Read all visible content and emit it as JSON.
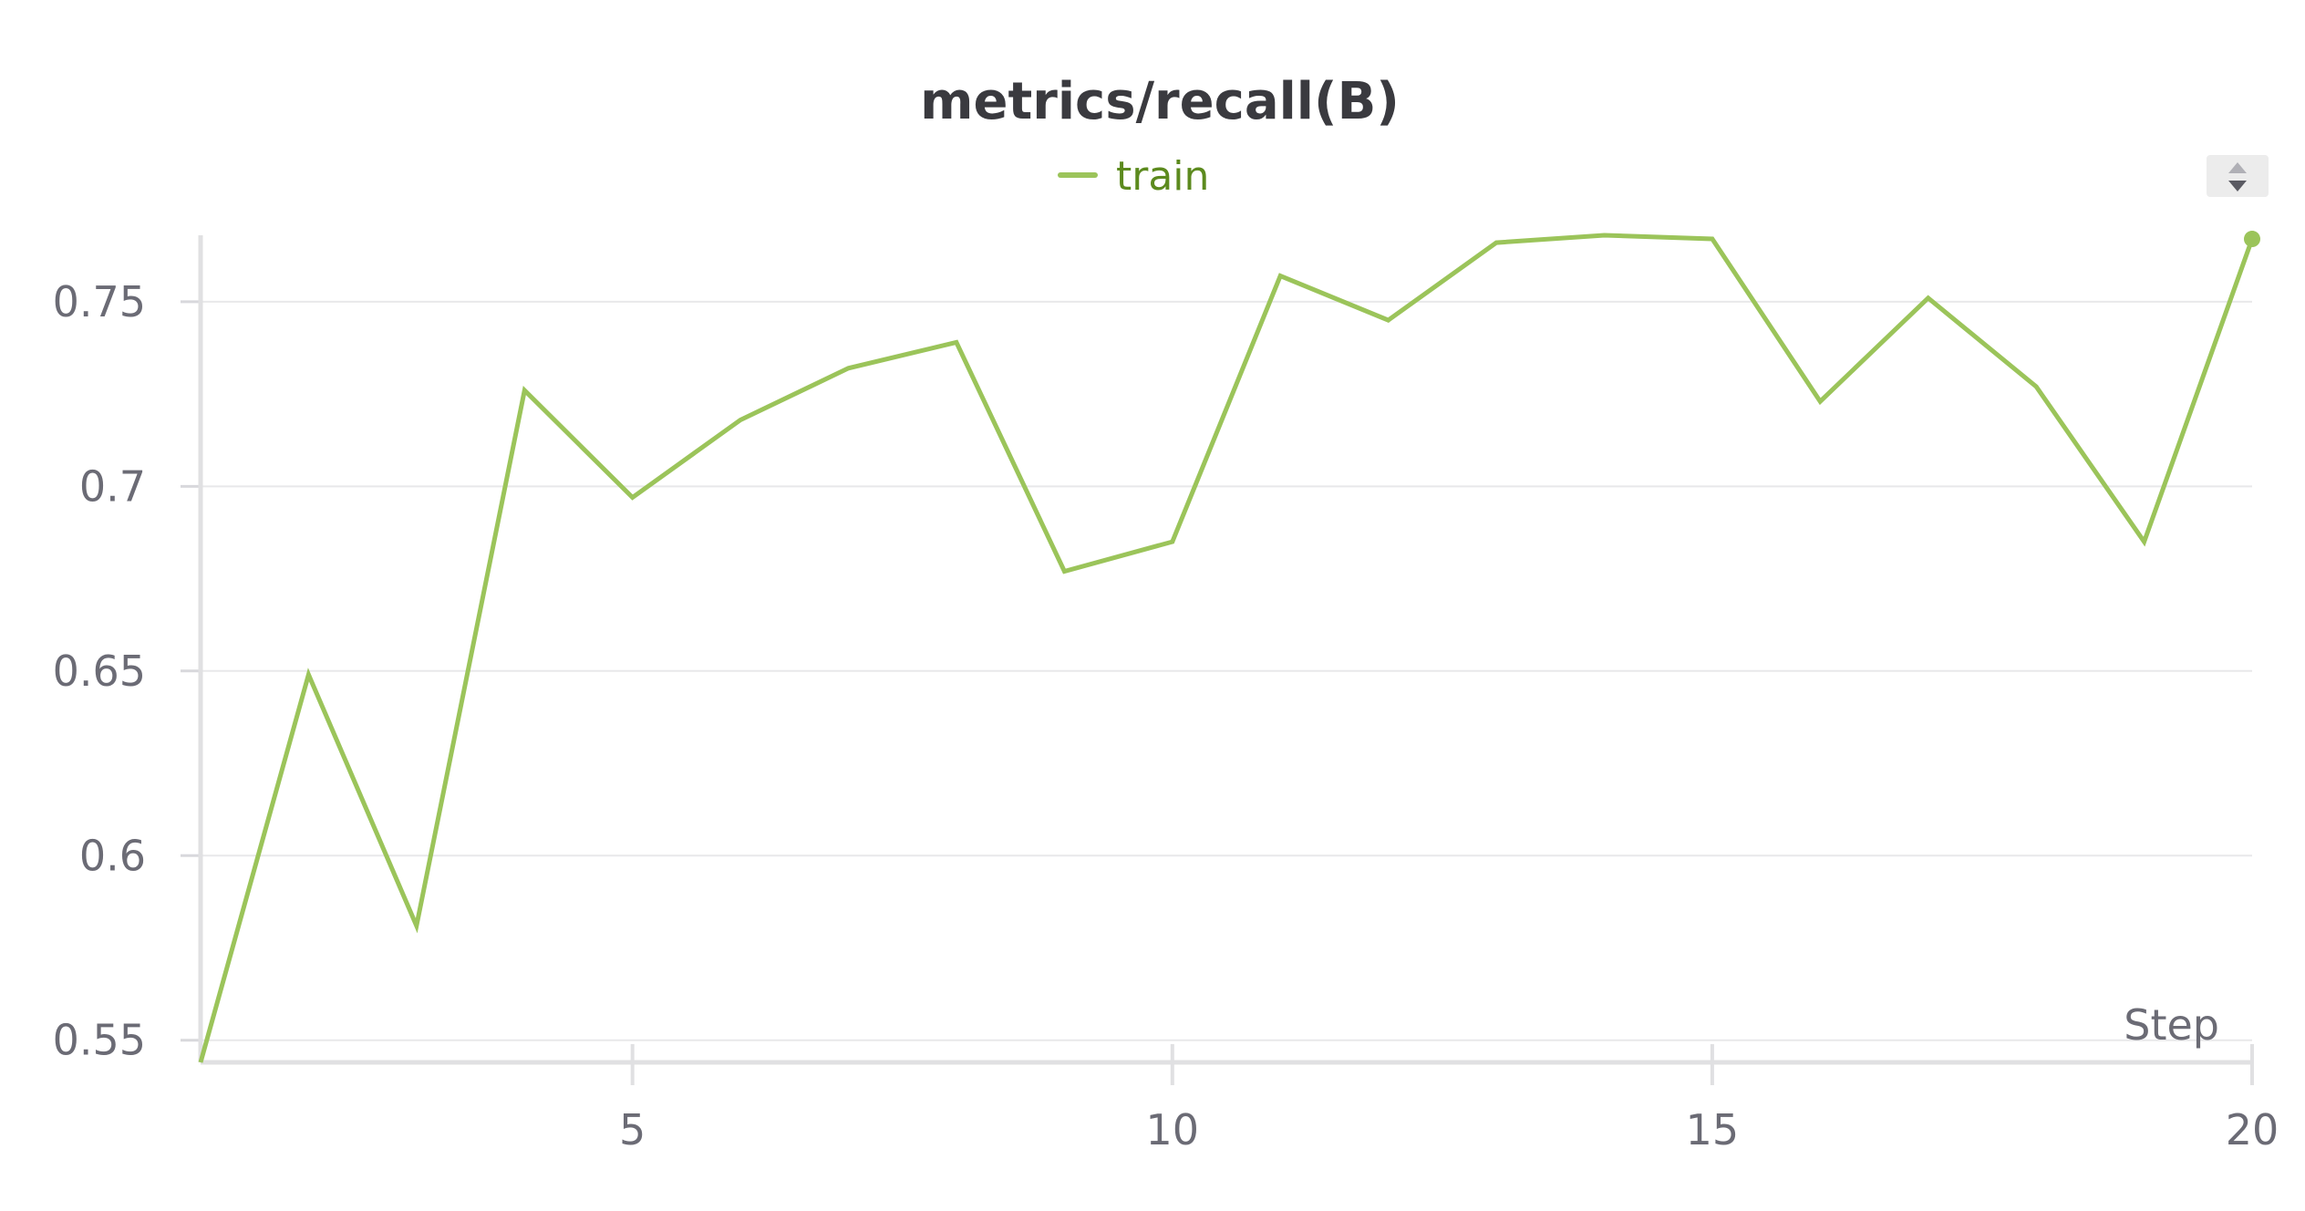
{
  "chart_data": {
    "type": "line",
    "title": "metrics/recall(B)",
    "xlabel": "Step",
    "ylabel": "",
    "x": [
      1,
      2,
      3,
      4,
      5,
      6,
      7,
      8,
      9,
      10,
      11,
      12,
      13,
      14,
      15,
      16,
      17,
      18,
      19,
      20
    ],
    "series": [
      {
        "name": "train",
        "color": "#9bc45a",
        "values": [
          0.544,
          0.649,
          0.581,
          0.726,
          0.697,
          0.718,
          0.732,
          0.739,
          0.677,
          0.685,
          0.757,
          0.745,
          0.766,
          0.768,
          0.767,
          0.723,
          0.751,
          0.727,
          0.685,
          0.767
        ]
      }
    ],
    "xlim": [
      1,
      20
    ],
    "ylim": [
      0.544,
      0.768
    ],
    "x_ticks": [
      5,
      10,
      15,
      20
    ],
    "x_tick_labels": [
      "5",
      "10",
      "15",
      "20"
    ],
    "y_ticks": [
      0.55,
      0.6,
      0.65,
      0.7,
      0.75
    ],
    "y_tick_labels": [
      "0.55",
      "0.6",
      "0.65",
      "0.7",
      "0.75"
    ],
    "grid": true,
    "legend_position": "top-center"
  },
  "controls": {
    "sort_icon": "sort-arrows-icon"
  }
}
